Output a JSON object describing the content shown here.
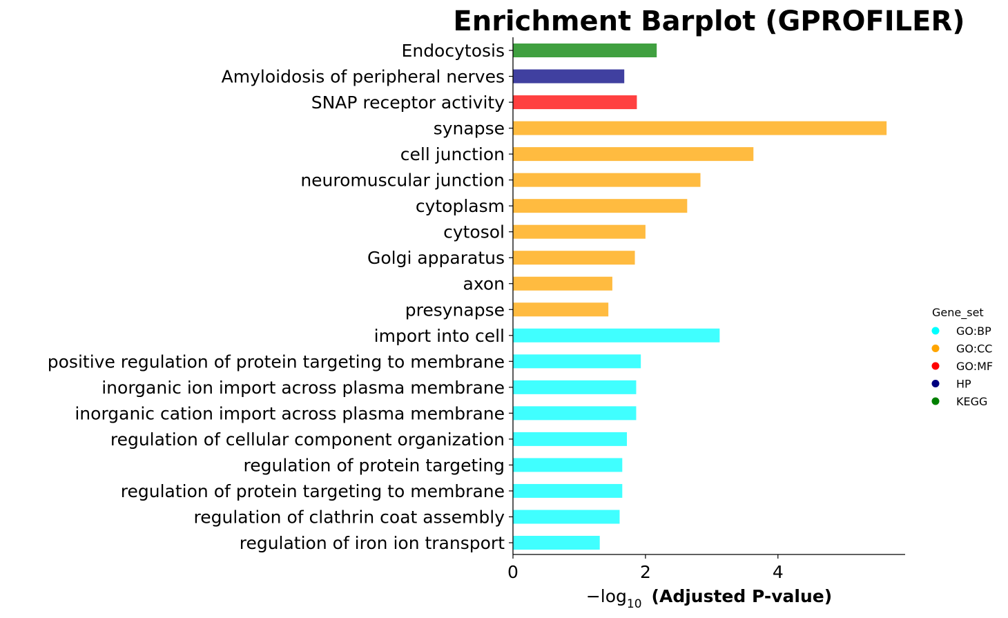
{
  "chart_data": {
    "type": "bar",
    "orientation": "horizontal",
    "title": "Enrichment Barplot (GPROFILER)",
    "xlabel": {
      "prefix": "−log",
      "subscript": "10",
      "bold": "(Adjusted P-value)"
    },
    "ylabel": "",
    "xlim": [
      0,
      5.92
    ],
    "xticks": [
      0,
      2,
      4
    ],
    "grid": false,
    "legend": {
      "title": "Gene_set",
      "position": "right",
      "entries": [
        {
          "label": "GO:BP",
          "color": "#00ffff"
        },
        {
          "label": "GO:CC",
          "color": "#ffa500"
        },
        {
          "label": "GO:MF",
          "color": "#ff0000"
        },
        {
          "label": "HP",
          "color": "#000080"
        },
        {
          "label": "KEGG",
          "color": "#008000"
        }
      ]
    },
    "bar_colors": {
      "GO:BP": "#40ffff",
      "GO:CC": "#ffbb40",
      "GO:MF": "#ff4040",
      "HP": "#4040a0",
      "KEGG": "#40a040"
    },
    "bars": [
      {
        "label": "Endocytosis",
        "value": 2.17,
        "gene_set": "KEGG"
      },
      {
        "label": "Amyloidosis of peripheral nerves",
        "value": 1.68,
        "gene_set": "HP"
      },
      {
        "label": "SNAP receptor activity",
        "value": 1.87,
        "gene_set": "GO:MF"
      },
      {
        "label": "synapse",
        "value": 5.64,
        "gene_set": "GO:CC"
      },
      {
        "label": "cell junction",
        "value": 3.63,
        "gene_set": "GO:CC"
      },
      {
        "label": "neuromuscular junction",
        "value": 2.83,
        "gene_set": "GO:CC"
      },
      {
        "label": "cytoplasm",
        "value": 2.63,
        "gene_set": "GO:CC"
      },
      {
        "label": "cytosol",
        "value": 2.0,
        "gene_set": "GO:CC"
      },
      {
        "label": "Golgi apparatus",
        "value": 1.84,
        "gene_set": "GO:CC"
      },
      {
        "label": "axon",
        "value": 1.5,
        "gene_set": "GO:CC"
      },
      {
        "label": "presynapse",
        "value": 1.44,
        "gene_set": "GO:CC"
      },
      {
        "label": "import into cell",
        "value": 3.12,
        "gene_set": "GO:BP"
      },
      {
        "label": "positive regulation of protein targeting to membrane",
        "value": 1.93,
        "gene_set": "GO:BP"
      },
      {
        "label": "inorganic ion import across plasma membrane",
        "value": 1.86,
        "gene_set": "GO:BP"
      },
      {
        "label": "inorganic cation import across plasma membrane",
        "value": 1.86,
        "gene_set": "GO:BP"
      },
      {
        "label": "regulation of cellular component organization",
        "value": 1.72,
        "gene_set": "GO:BP"
      },
      {
        "label": "regulation of protein targeting",
        "value": 1.65,
        "gene_set": "GO:BP"
      },
      {
        "label": "regulation of protein targeting to membrane",
        "value": 1.65,
        "gene_set": "GO:BP"
      },
      {
        "label": "regulation of clathrin coat assembly",
        "value": 1.61,
        "gene_set": "GO:BP"
      },
      {
        "label": "regulation of iron ion transport",
        "value": 1.31,
        "gene_set": "GO:BP"
      }
    ]
  }
}
